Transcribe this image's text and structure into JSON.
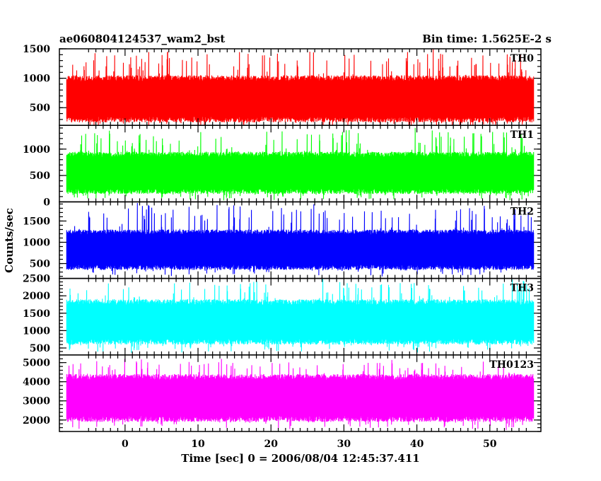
{
  "chart_data": {
    "type": "line",
    "title_left": "ae060804124537_wam2_bst",
    "title_right": "Bin time: 1.5625E-2 s",
    "xlabel": "Time [sec] 0 = 2006/08/04 12:45:37.411",
    "ylabel": "Counts/sec",
    "xlim": [
      -9,
      57
    ],
    "x_data_range": [
      -8,
      56
    ],
    "x_ticks": [
      0,
      10,
      20,
      30,
      40,
      50
    ],
    "x_tick_labels": [
      "0",
      "10",
      "20",
      "30",
      "40",
      "50"
    ],
    "panels": [
      {
        "label": "TH0",
        "color": "#ff0000",
        "ylim": [
          200,
          1500
        ],
        "y_ticks": [
          500,
          1000,
          1500
        ],
        "y_tick_labels": [
          "500",
          "1000",
          "1500"
        ],
        "minor_step": 100,
        "typical_min": 250,
        "typical_max": 1050,
        "peak_max": 1500,
        "floor_min": 120
      },
      {
        "label": "TH1",
        "color": "#00ff00",
        "ylim": [
          0,
          1450
        ],
        "y_ticks": [
          0,
          500,
          1000
        ],
        "y_tick_labels": [
          "0",
          "500",
          "1000"
        ],
        "minor_step": 100,
        "typical_min": 150,
        "typical_max": 950,
        "peak_max": 1420,
        "floor_min": 20
      },
      {
        "label": "TH2",
        "color": "#0000ff",
        "ylim": [
          150,
          1950
        ],
        "y_ticks": [
          500,
          1000,
          1500
        ],
        "y_tick_labels": [
          "500",
          "1000",
          "1500"
        ],
        "minor_step": 100,
        "typical_min": 350,
        "typical_max": 1300,
        "peak_max": 1950,
        "floor_min": 170
      },
      {
        "label": "TH3",
        "color": "#00ffff",
        "ylim": [
          300,
          2500
        ],
        "y_ticks": [
          500,
          1000,
          1500,
          2000,
          2500
        ],
        "y_tick_labels": [
          "500",
          "1000",
          "1500",
          "2000",
          "2500"
        ],
        "minor_step": 100,
        "typical_min": 600,
        "typical_max": 1900,
        "peak_max": 2500,
        "floor_min": 350
      },
      {
        "label": "TH0123",
        "color": "#ff00ff",
        "ylim": [
          1400,
          5400
        ],
        "y_ticks": [
          2000,
          3000,
          4000,
          5000
        ],
        "y_tick_labels": [
          "2000",
          "3000",
          "4000",
          "5000"
        ],
        "minor_step": 200,
        "typical_min": 1900,
        "typical_max": 4400,
        "peak_max": 5300,
        "floor_min": 1450
      }
    ]
  }
}
